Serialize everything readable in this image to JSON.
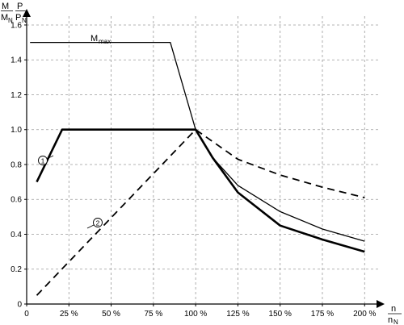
{
  "chart_data": {
    "type": "line",
    "x": {
      "ticks": [
        0,
        25,
        50,
        75,
        100,
        125,
        150,
        175,
        200
      ],
      "tick_labels": [
        "0",
        "25 %",
        "50 %",
        "75 %",
        "100 %",
        "125 %",
        "150 %",
        "175 %",
        "200 %"
      ],
      "range": [
        0,
        208
      ],
      "label": {
        "top": "n",
        "bottom": "n",
        "sub": "N"
      }
    },
    "y": {
      "ticks": [
        0,
        0.2,
        0.4,
        0.6,
        0.8,
        1.0,
        1.2,
        1.4,
        1.6
      ],
      "tick_labels": [
        "0",
        "0.2",
        "0.4",
        "0.6",
        "0.8",
        "1.0",
        "1.2",
        "1.4",
        "1.6"
      ],
      "range": [
        0,
        1.66
      ],
      "label": {
        "left_top": "M",
        "left_bottom": "M",
        "left_sub": "N",
        "right_top": "P",
        "right_bottom": "P",
        "right_sub": "N"
      }
    },
    "grid": true,
    "series": [
      {
        "name": "M",
        "sub": "max",
        "style": "thin-solid",
        "points": [
          [
            2,
            1.5
          ],
          [
            85,
            1.5
          ],
          [
            100,
            1.0
          ],
          [
            110,
            0.84
          ],
          [
            125,
            0.68
          ],
          [
            150,
            0.53
          ],
          [
            175,
            0.43
          ],
          [
            200,
            0.36
          ]
        ]
      },
      {
        "name": "1",
        "style": "thick-solid",
        "points": [
          [
            6,
            0.7
          ],
          [
            21,
            1.0
          ],
          [
            100,
            1.0
          ],
          [
            110,
            0.84
          ],
          [
            125,
            0.64
          ],
          [
            150,
            0.45
          ],
          [
            175,
            0.37
          ],
          [
            200,
            0.3
          ]
        ]
      },
      {
        "name": "2",
        "style": "dashed",
        "points": [
          [
            6,
            0.05
          ],
          [
            100,
            1.0
          ],
          [
            125,
            0.83
          ],
          [
            150,
            0.74
          ],
          [
            175,
            0.67
          ],
          [
            200,
            0.61
          ]
        ]
      }
    ]
  }
}
